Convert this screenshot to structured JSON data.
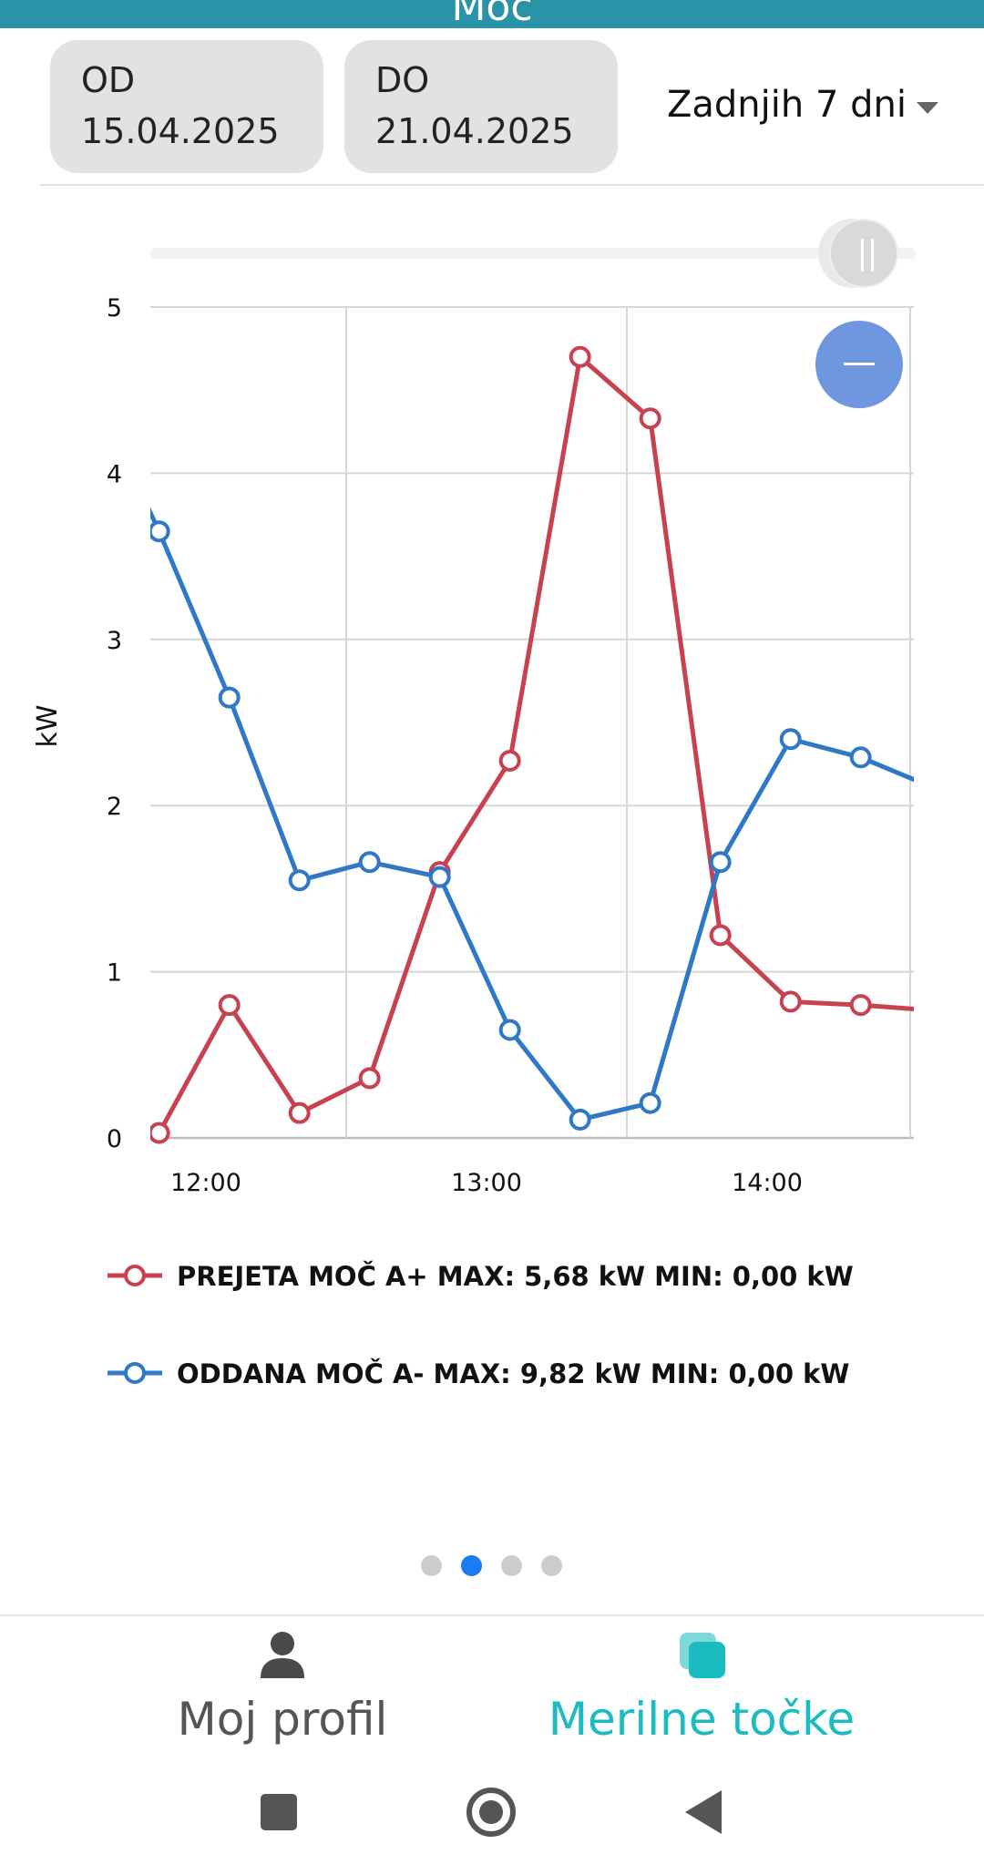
{
  "header": {
    "title": "Moč"
  },
  "filters": {
    "from": {
      "label": "OD",
      "date": "15.04.2025"
    },
    "to": {
      "label": "DO",
      "date": "21.04.2025"
    },
    "range_select": "Zadnjih 7 dni"
  },
  "colors": {
    "header": "#2a93a8",
    "received": "#c84150",
    "delivered": "#2f78c8",
    "accent": "#1bbcc0",
    "zoom": "#6e97e0"
  },
  "zoom_button": {
    "icon": "minus-icon"
  },
  "chart_data": {
    "type": "line",
    "title": "",
    "xlabel": "",
    "ylabel": "kW",
    "ylim": [
      0,
      5
    ],
    "yticks": [
      "0",
      "1",
      "2",
      "3",
      "4",
      "5"
    ],
    "xticks": [
      "12:00",
      "13:00",
      "14:00"
    ],
    "grid": true,
    "legend_position": "bottom",
    "x": [
      "11:50",
      "12:05",
      "12:20",
      "12:35",
      "12:50",
      "13:05",
      "13:20",
      "13:35",
      "13:50",
      "14:05",
      "14:20"
    ],
    "series": [
      {
        "name": "PREJETA MOČ A+ MAX: 5,68 kW MIN: 0,00 kW",
        "color": "#c84150",
        "values": [
          0.03,
          0.8,
          0.15,
          0.36,
          1.6,
          2.27,
          4.7,
          4.33,
          1.22,
          0.82,
          0.8
        ]
      },
      {
        "name": "ODDANA MOČ A- MAX: 9,82 kW MIN: 0,00 kW",
        "color": "#2f78c8",
        "values": [
          3.65,
          2.65,
          1.55,
          1.66,
          1.57,
          0.65,
          0.11,
          0.21,
          1.66,
          2.4,
          2.29
        ]
      }
    ]
  },
  "pager": {
    "count": 4,
    "active": 1
  },
  "bottom_nav": [
    {
      "label": "Moj profil",
      "icon": "person-icon",
      "active": false
    },
    {
      "label": "Merilne točke",
      "icon": "meter-points-icon",
      "active": true
    }
  ],
  "system_nav": [
    {
      "icon": "recents-square-icon"
    },
    {
      "icon": "home-circle-icon"
    },
    {
      "icon": "back-triangle-icon"
    }
  ]
}
